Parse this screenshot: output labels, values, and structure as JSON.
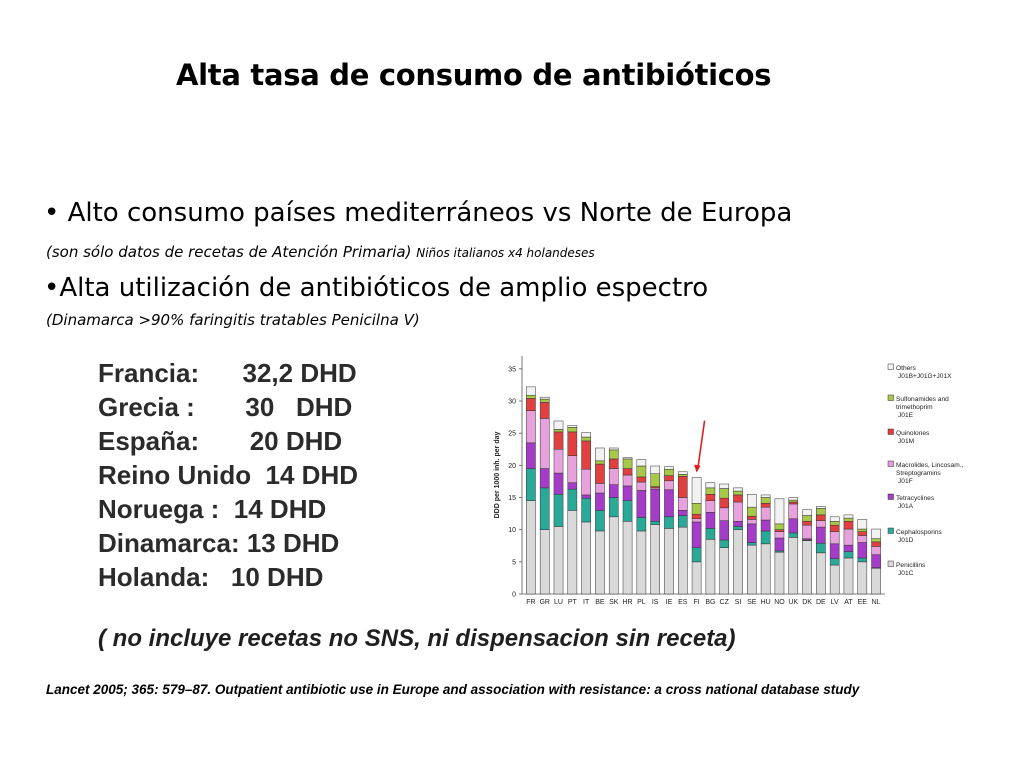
{
  "slide": {
    "title": "Alta tasa de consumo de antibióticos",
    "bullet1": "• Alto consumo países mediterráneos vs Norte de Europa",
    "note1_main": "(son sólo datos de recetas de Atención Primaria)",
    "note1_small": "Niños italianos x4 holandeses",
    "bullet2": "•Alta utilización de antibióticos de amplio espectro",
    "note2": "(Dinamarca >90% faringitis tratables Penicilna V)",
    "dhd_list": [
      "Francia:      32,2 DHD",
      "Grecia :       30   DHD",
      "España:       20 DHD",
      "Reino Unido  14 DHD",
      "Noruega :  14 DHD",
      "Dinamarca: 13 DHD",
      "Holanda:   10 DHD"
    ],
    "exclusion_note": "( no incluye recetas no SNS, ni dispensacion sin receta)",
    "citation": "Lancet 2005; 365: 579–87. Outpatient antibiotic use in Europe and association with resistance: a cross national database study"
  },
  "chart_data": {
    "type": "bar",
    "stacked": true,
    "ylabel": "DDD per 1000 inh. per day",
    "ylim": [
      0,
      37
    ],
    "yticks": [
      0,
      5,
      10,
      15,
      20,
      25,
      30,
      35
    ],
    "categories": [
      "FR",
      "GR",
      "LU",
      "PT",
      "IT",
      "BE",
      "SK",
      "HR",
      "PL",
      "IS",
      "IE",
      "ES",
      "FI",
      "BG",
      "CZ",
      "SI",
      "SE",
      "HU",
      "NO",
      "UK",
      "DK",
      "DE",
      "LV",
      "AT",
      "EE",
      "NL"
    ],
    "highlighted_category": "FI",
    "legend_position": "right",
    "series": [
      {
        "name": "Penicillins J01C",
        "color": "#d9d9d9",
        "values": [
          14.5,
          10.0,
          10.5,
          13.0,
          11.2,
          9.8,
          12.0,
          11.3,
          9.8,
          10.8,
          10.2,
          10.4,
          5.0,
          8.5,
          7.2,
          10.0,
          7.6,
          7.8,
          6.5,
          8.8,
          8.3,
          6.4,
          4.5,
          5.6,
          5.0,
          4.0
        ]
      },
      {
        "name": "Cephalosporins J01D",
        "color": "#2aa898",
        "values": [
          5.0,
          6.5,
          5.0,
          3.3,
          3.7,
          3.2,
          3.0,
          3.2,
          2.1,
          0.5,
          1.8,
          1.8,
          2.2,
          1.7,
          1.2,
          0.5,
          0.4,
          2.0,
          0.2,
          0.7,
          0.1,
          1.5,
          1.0,
          1.0,
          0.6,
          0.1
        ]
      },
      {
        "name": "Tetracyclines J01A",
        "color": "#a43cc8",
        "values": [
          4.0,
          3.0,
          3.3,
          1.0,
          0.5,
          2.7,
          2.0,
          2.3,
          4.2,
          5.0,
          4.2,
          0.8,
          4.0,
          2.5,
          3.0,
          0.8,
          2.9,
          1.7,
          2.0,
          2.2,
          0.2,
          2.5,
          2.3,
          1.0,
          2.4,
          2.0
        ]
      },
      {
        "name": "Macrolides, Lincosam., Streptogramins J01F",
        "color": "#e7a1dc",
        "values": [
          5.0,
          7.8,
          3.7,
          4.2,
          4.0,
          1.5,
          2.5,
          1.7,
          1.3,
          0.2,
          1.4,
          2.0,
          0.5,
          1.8,
          2.0,
          3.0,
          0.7,
          2.0,
          1.0,
          2.3,
          2.1,
          1.0,
          1.9,
          2.5,
          1.1,
          1.3
        ]
      },
      {
        "name": "Quinolones J01M",
        "color": "#e04040",
        "values": [
          1.9,
          2.5,
          2.7,
          3.7,
          4.4,
          3.0,
          1.5,
          1.0,
          0.8,
          0.2,
          0.8,
          3.3,
          0.7,
          1.0,
          1.5,
          1.1,
          0.5,
          0.6,
          0.3,
          0.3,
          0.6,
          0.9,
          1.0,
          1.2,
          0.6,
          0.7
        ]
      },
      {
        "name": "Sulfonamides and trimethoprim J01E",
        "color": "#a8c84a",
        "values": [
          0.5,
          0.5,
          0.4,
          0.7,
          0.6,
          0.5,
          1.4,
          1.5,
          1.7,
          2.0,
          1.0,
          0.3,
          1.7,
          1.0,
          1.5,
          0.6,
          1.4,
          0.9,
          0.9,
          0.3,
          0.9,
          1.0,
          0.6,
          0.5,
          0.4,
          0.5
        ]
      },
      {
        "name": "Others J01B+J01G+J01X",
        "color": "#f2f2f2",
        "values": [
          1.3,
          0.3,
          1.3,
          0.3,
          0.7,
          2.0,
          0.3,
          0.2,
          1.0,
          1.2,
          0.4,
          0.4,
          4.0,
          0.8,
          0.7,
          0.5,
          2.0,
          0.4,
          3.9,
          0.4,
          0.9,
          0.3,
          0.7,
          0.5,
          1.5,
          1.5
        ]
      }
    ]
  }
}
